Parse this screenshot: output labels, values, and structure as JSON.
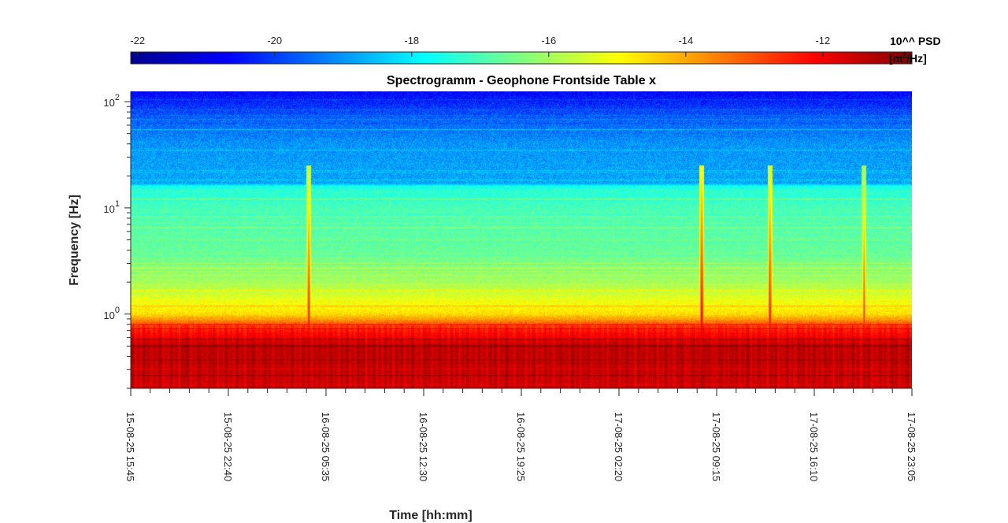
{
  "chart_data": {
    "type": "heatmap",
    "title": "Spectrogramm - Geophone Frontside Table x",
    "xlabel": "Time [hh:mm]",
    "ylabel": "Frequency [Hz]",
    "y_scale": "log",
    "ylim": [
      0.2,
      125
    ],
    "y_ticks": [
      {
        "base": "10",
        "exp": "2",
        "value": 100
      },
      {
        "base": "10",
        "exp": "1",
        "value": 10
      },
      {
        "base": "10",
        "exp": "0",
        "value": 1
      }
    ],
    "x_ticks": [
      "15-08-25 15:45",
      "15-08-25 22:40",
      "16-08-25 05:35",
      "16-08-25 12:30",
      "16-08-25 19:25",
      "17-08-25 02:20",
      "17-08-25 09:15",
      "17-08-25 16:10",
      "17-08-25 23:05"
    ],
    "colorbar": {
      "title_line1": "10^^ PSD",
      "title_line2_prefix": "[m",
      "title_line2_sup": "2",
      "title_line2_suffix": "/Hz]",
      "ticks": [
        "-22",
        "-20",
        "-18",
        "-16",
        "-14",
        "-12"
      ],
      "tick_values": [
        -22,
        -20,
        -18,
        -16,
        -14,
        -12
      ],
      "range": [
        -22.1,
        -10.7
      ],
      "colormap": "jet",
      "placement": "top"
    },
    "psd_profile_log10_by_frequency": [
      {
        "f": 0.2,
        "psd": -11.6
      },
      {
        "f": 0.5,
        "psd": -11.4
      },
      {
        "f": 0.75,
        "psd": -12.6
      },
      {
        "f": 1.0,
        "psd": -14.6
      },
      {
        "f": 2.0,
        "psd": -16.0
      },
      {
        "f": 4.0,
        "psd": -16.7
      },
      {
        "f": 10.0,
        "psd": -17.0
      },
      {
        "f": 16.0,
        "psd": -17.6
      },
      {
        "f": 17.0,
        "psd": -18.8
      },
      {
        "f": 40.0,
        "psd": -19.0
      },
      {
        "f": 70.0,
        "psd": -19.6
      },
      {
        "f": 125.0,
        "psd": -20.7
      }
    ],
    "transient_events": [
      {
        "time": "16-08-25 04:20",
        "psd": -11.8
      },
      {
        "time": "17-08-25 08:10",
        "psd": -11.3
      },
      {
        "time": "17-08-25 13:00",
        "psd": -11.6
      },
      {
        "time": "17-08-25 19:40",
        "psd": -12.2
      }
    ],
    "grid": false
  }
}
